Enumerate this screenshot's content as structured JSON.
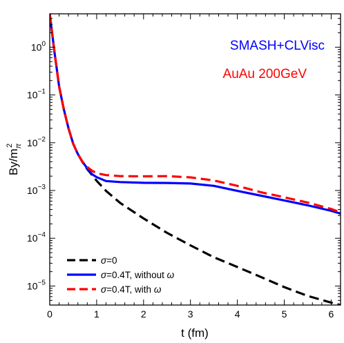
{
  "chart_data": {
    "type": "line",
    "xlabel": "t (fm)",
    "ylabel": "By/m",
    "ylabel_sup": "2",
    "ylabel_sub": "π",
    "xlim": [
      0,
      6.2
    ],
    "ylim": [
      4e-06,
      5
    ],
    "yscale": "log",
    "grid": false,
    "legend_position": "bottom-left",
    "x_ticks": [
      0,
      1,
      2,
      3,
      4,
      5,
      6
    ],
    "y_ticks": [
      {
        "value": 1e-05,
        "mantissa": "10",
        "exponent": "−5"
      },
      {
        "value": 0.0001,
        "mantissa": "10",
        "exponent": "−4"
      },
      {
        "value": 0.001,
        "mantissa": "10",
        "exponent": "−3"
      },
      {
        "value": 0.01,
        "mantissa": "10",
        "exponent": "−2"
      },
      {
        "value": 0.1,
        "mantissa": "10",
        "exponent": "−1"
      },
      {
        "value": 1,
        "mantissa": "10",
        "exponent": "0"
      }
    ],
    "annotations": [
      {
        "text": "SMASH+CLVisc",
        "color": "#0000ff"
      },
      {
        "text": "AuAu 200GeV",
        "color": "#ff0000"
      }
    ],
    "series": [
      {
        "name": "σ=0",
        "color": "#000000",
        "dashed": true,
        "x": [
          0.0,
          0.05,
          0.1,
          0.15,
          0.2,
          0.3,
          0.4,
          0.5,
          0.6,
          0.7,
          0.8,
          1.0,
          1.2,
          1.5,
          2.0,
          2.5,
          3.0,
          3.5,
          4.0,
          4.5,
          5.0,
          5.5,
          6.0,
          6.2
        ],
        "y": [
          5.0,
          2.0,
          0.8,
          0.35,
          0.15,
          0.05,
          0.02,
          0.0095,
          0.0058,
          0.0039,
          0.0028,
          0.0016,
          0.00098,
          0.00055,
          0.00026,
          0.00013,
          7.1e-05,
          4e-05,
          2.5e-05,
          1.55e-05,
          9.5e-06,
          6.2e-06,
          4.5e-06,
          4e-06
        ]
      },
      {
        "name": "σ=0.4T, without ω",
        "color": "#0000ff",
        "dashed": false,
        "x": [
          0.0,
          0.05,
          0.1,
          0.15,
          0.2,
          0.3,
          0.4,
          0.5,
          0.6,
          0.7,
          0.8,
          0.9,
          1.0,
          1.2,
          1.5,
          2.0,
          2.5,
          3.0,
          3.5,
          4.0,
          4.5,
          5.0,
          5.5,
          6.0,
          6.2
        ],
        "y": [
          5.0,
          2.0,
          0.8,
          0.35,
          0.15,
          0.05,
          0.02,
          0.0095,
          0.0058,
          0.004,
          0.0029,
          0.0022,
          0.0019,
          0.00158,
          0.0015,
          0.00145,
          0.00144,
          0.0014,
          0.00125,
          0.00098,
          0.00078,
          0.00062,
          0.00049,
          0.000375,
          0.00033
        ]
      },
      {
        "name": "σ=0.4T, with ω",
        "color": "#ff0000",
        "dashed": true,
        "x": [
          0.0,
          0.05,
          0.1,
          0.15,
          0.2,
          0.3,
          0.4,
          0.5,
          0.6,
          0.7,
          0.8,
          0.9,
          1.0,
          1.2,
          1.5,
          2.0,
          2.5,
          3.0,
          3.5,
          4.0,
          4.5,
          5.0,
          5.5,
          6.0,
          6.2
        ],
        "y": [
          5.0,
          2.0,
          0.8,
          0.35,
          0.15,
          0.05,
          0.02,
          0.0095,
          0.0058,
          0.004,
          0.0031,
          0.0026,
          0.0023,
          0.0021,
          0.002,
          0.00198,
          0.002,
          0.00188,
          0.00162,
          0.00125,
          0.00092,
          0.00072,
          0.00056,
          0.00041,
          0.00035
        ]
      }
    ]
  }
}
